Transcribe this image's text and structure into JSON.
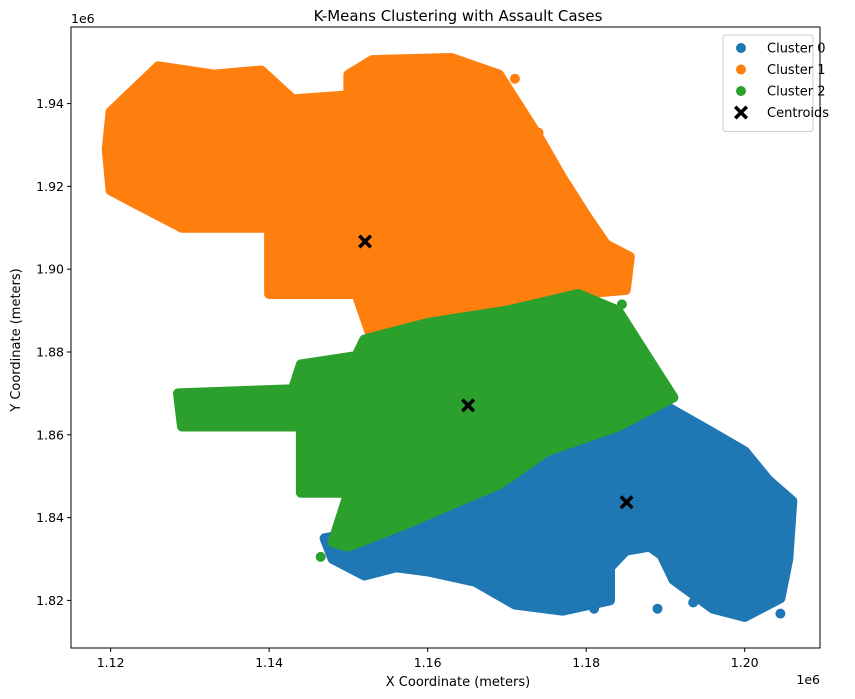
{
  "chart_data": {
    "type": "scatter",
    "title": "K-Means Clustering with Assault Cases",
    "xlabel": "X Coordinate (meters)",
    "ylabel": "Y Coordinate (meters)",
    "x_offset_label": "1e6",
    "y_offset_label": "1e6",
    "xlim": [
      1.115,
      1.2095
    ],
    "ylim": [
      1.8085,
      1.9585
    ],
    "x_ticks": [
      1.12,
      1.14,
      1.16,
      1.18,
      1.2
    ],
    "y_ticks": [
      1.82,
      1.84,
      1.86,
      1.88,
      1.9,
      1.92,
      1.94
    ],
    "x_tick_labels": [
      "1.12",
      "1.14",
      "1.16",
      "1.18",
      "1.20"
    ],
    "y_tick_labels": [
      "1.82",
      "1.84",
      "1.86",
      "1.88",
      "1.90",
      "1.92",
      "1.94"
    ],
    "grid": false,
    "legend_position": "top-right",
    "series": [
      {
        "name": "Cluster 0",
        "color": "#1f77b4",
        "region": [
          [
            1.19,
            1.867
          ],
          [
            1.1955,
            1.861
          ],
          [
            1.2,
            1.856
          ],
          [
            1.203,
            1.849
          ],
          [
            1.206,
            1.844
          ],
          [
            1.2055,
            1.83
          ],
          [
            1.2045,
            1.8205
          ],
          [
            1.2,
            1.816
          ],
          [
            1.196,
            1.818
          ],
          [
            1.191,
            1.825
          ],
          [
            1.1895,
            1.831
          ],
          [
            1.188,
            1.833
          ],
          [
            1.185,
            1.832
          ],
          [
            1.183,
            1.828
          ],
          [
            1.183,
            1.82
          ],
          [
            1.177,
            1.8175
          ],
          [
            1.171,
            1.819
          ],
          [
            1.166,
            1.8245
          ],
          [
            1.16,
            1.827
          ],
          [
            1.156,
            1.828
          ],
          [
            1.152,
            1.826
          ],
          [
            1.148,
            1.83
          ],
          [
            1.147,
            1.835
          ],
          [
            1.153,
            1.837
          ],
          [
            1.158,
            1.839
          ],
          [
            1.162,
            1.844
          ],
          [
            1.168,
            1.847
          ]
        ],
        "points": [
          [
            1.2045,
            1.8168
          ],
          [
            1.193,
            1.8245
          ],
          [
            1.2005,
            1.827
          ],
          [
            1.1935,
            1.8195
          ],
          [
            1.203,
            1.8425
          ],
          [
            1.181,
            1.818
          ],
          [
            1.189,
            1.818
          ]
        ]
      },
      {
        "name": "Cluster 1",
        "color": "#ff7f0e",
        "region": [
          [
            1.153,
            1.883
          ],
          [
            1.16,
            1.887
          ],
          [
            1.17,
            1.89
          ],
          [
            1.179,
            1.894
          ],
          [
            1.185,
            1.895
          ],
          [
            1.1855,
            1.903
          ],
          [
            1.1825,
            1.906
          ],
          [
            1.18,
            1.913
          ],
          [
            1.177,
            1.922
          ],
          [
            1.174,
            1.932
          ],
          [
            1.169,
            1.947
          ],
          [
            1.163,
            1.951
          ],
          [
            1.153,
            1.9505
          ],
          [
            1.15,
            1.947
          ],
          [
            1.15,
            1.942
          ],
          [
            1.143,
            1.941
          ],
          [
            1.139,
            1.948
          ],
          [
            1.133,
            1.947
          ],
          [
            1.126,
            1.949
          ],
          [
            1.12,
            1.938
          ],
          [
            1.1195,
            1.929
          ],
          [
            1.12,
            1.919
          ],
          [
            1.129,
            1.91
          ],
          [
            1.14,
            1.91
          ],
          [
            1.14,
            1.894
          ],
          [
            1.151,
            1.894
          ]
        ],
        "points": [
          [
            1.12,
            1.938
          ],
          [
            1.1215,
            1.937
          ],
          [
            1.124,
            1.934
          ],
          [
            1.1845,
            1.904
          ],
          [
            1.174,
            1.933
          ],
          [
            1.171,
            1.946
          ],
          [
            1.1445,
            1.935
          ],
          [
            1.13,
            1.928
          ],
          [
            1.181,
            1.895
          ]
        ]
      },
      {
        "name": "Cluster 2",
        "color": "#2ca02c",
        "region": [
          [
            1.152,
            1.883
          ],
          [
            1.16,
            1.887
          ],
          [
            1.17,
            1.89
          ],
          [
            1.179,
            1.894
          ],
          [
            1.184,
            1.89
          ],
          [
            1.188,
            1.878
          ],
          [
            1.191,
            1.869
          ],
          [
            1.184,
            1.862
          ],
          [
            1.175,
            1.856
          ],
          [
            1.169,
            1.848
          ],
          [
            1.164,
            1.844
          ],
          [
            1.158,
            1.839
          ],
          [
            1.15,
            1.833
          ],
          [
            1.148,
            1.834
          ],
          [
            1.15,
            1.846
          ],
          [
            1.144,
            1.846
          ],
          [
            1.144,
            1.862
          ],
          [
            1.129,
            1.862
          ],
          [
            1.1285,
            1.87
          ],
          [
            1.143,
            1.871
          ],
          [
            1.144,
            1.877
          ],
          [
            1.151,
            1.879
          ]
        ],
        "points": [
          [
            1.1465,
            1.8305
          ],
          [
            1.1845,
            1.8915
          ],
          [
            1.186,
            1.884
          ],
          [
            1.18,
            1.893
          ],
          [
            1.1645,
            1.845
          ],
          [
            1.1505,
            1.8365
          ],
          [
            1.152,
            1.838
          ]
        ]
      },
      {
        "name": "Centroids",
        "color": "#000000",
        "marker": "X",
        "points": [
          [
            1.1851,
            1.8437
          ],
          [
            1.1521,
            1.9067
          ],
          [
            1.1651,
            1.8671
          ]
        ]
      }
    ]
  }
}
